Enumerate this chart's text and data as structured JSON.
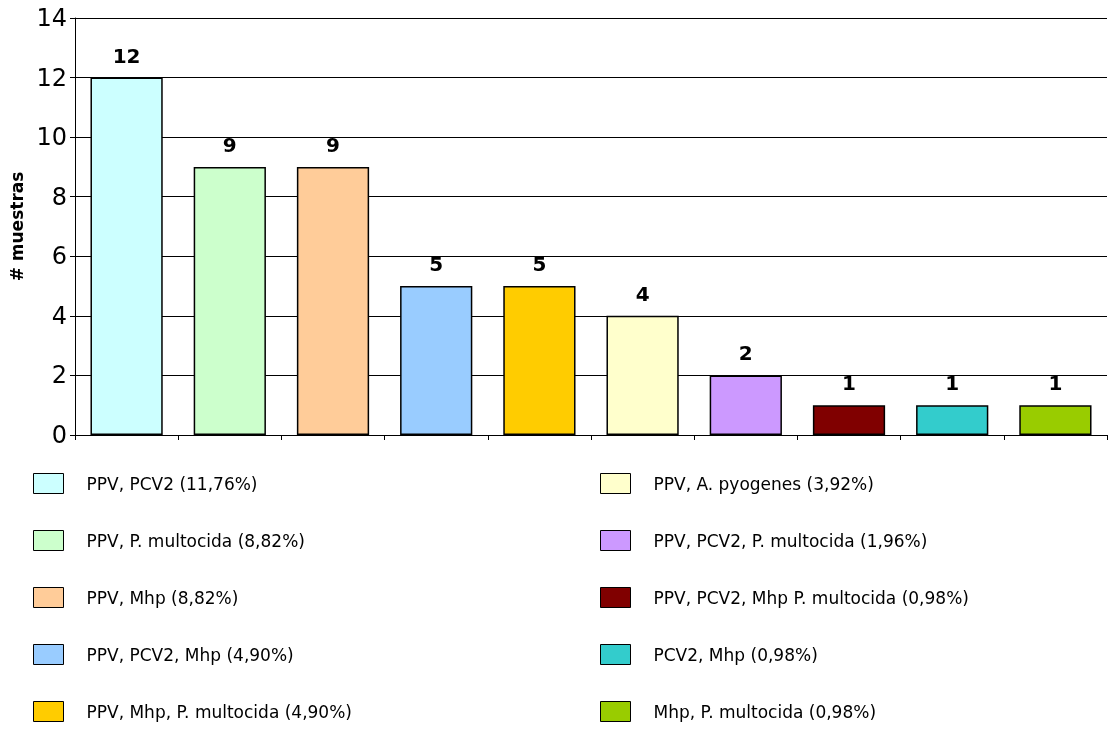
{
  "chart_data": {
    "type": "bar",
    "ylabel": "# muestras",
    "categories": [
      null,
      null,
      null,
      null,
      null,
      null,
      null,
      null,
      null,
      null
    ],
    "stacked": true,
    "ylim": [
      0,
      14
    ],
    "yticks": [
      0,
      2,
      4,
      6,
      8,
      10,
      12,
      14
    ],
    "grid": "y",
    "legend": "bottom",
    "data_labels": true,
    "series": [
      {
        "name": "PPV, PCV2 (11,76%)",
        "color": "#ccffff",
        "values": [
          12,
          null,
          null,
          null,
          null,
          null,
          null,
          null,
          null,
          null
        ]
      },
      {
        "name": "PPV, P. multocida (8,82%)",
        "color": "#ccffcc",
        "values": [
          null,
          9,
          null,
          null,
          null,
          null,
          null,
          null,
          null,
          null
        ]
      },
      {
        "name": "PPV, Mhp (8,82%)",
        "color": "#ffcc99",
        "values": [
          null,
          null,
          9,
          null,
          null,
          null,
          null,
          null,
          null,
          null
        ]
      },
      {
        "name": "PPV, PCV2, Mhp (4,90%)",
        "color": "#99ccff",
        "values": [
          null,
          null,
          null,
          5,
          null,
          null,
          null,
          null,
          null,
          null
        ]
      },
      {
        "name": "PPV, Mhp, P. multocida (4,90%)",
        "color": "#ffcc00",
        "values": [
          null,
          null,
          null,
          null,
          5,
          null,
          null,
          null,
          null,
          null
        ]
      },
      {
        "name": "PPV, A. pyogenes (3,92%)",
        "color": "#ffffcc",
        "values": [
          null,
          null,
          null,
          null,
          null,
          4,
          null,
          null,
          null,
          null
        ]
      },
      {
        "name": "PPV, PCV2, P. multocida (1,96%)",
        "color": "#cc99ff",
        "values": [
          null,
          null,
          null,
          null,
          null,
          null,
          2,
          null,
          null,
          null
        ]
      },
      {
        "name": "PPV, PCV2, Mhp P. multocida (0,98%)",
        "color": "#800000",
        "values": [
          null,
          null,
          null,
          null,
          null,
          null,
          null,
          1,
          null,
          null
        ]
      },
      {
        "name": "PCV2, Mhp (0,98%)",
        "color": "#33cccc",
        "values": [
          null,
          null,
          null,
          null,
          null,
          null,
          null,
          null,
          1,
          null
        ]
      },
      {
        "name": "Mhp, P. multocida (0,98%)",
        "color": "#99cc00",
        "values": [
          null,
          null,
          null,
          null,
          null,
          null,
          null,
          null,
          null,
          1
        ]
      }
    ]
  }
}
